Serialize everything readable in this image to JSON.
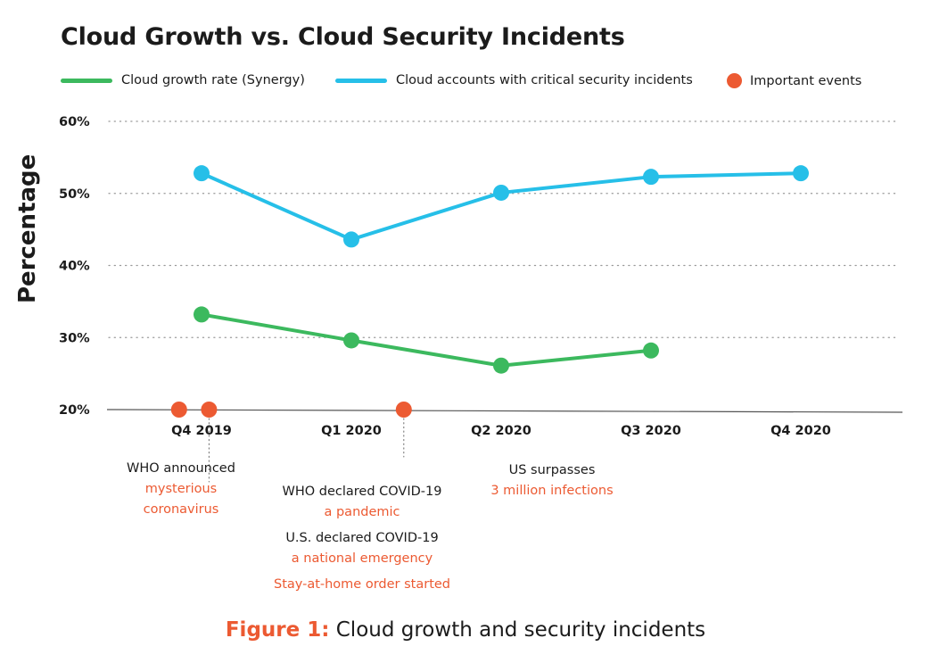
{
  "title": "Cloud Growth vs. Cloud Security Incidents",
  "caption": {
    "label": "Figure 1:",
    "text": "Cloud growth and security incidents"
  },
  "colors": {
    "green": "#3cb95e",
    "blue": "#26bfe8",
    "orange": "#ec5a32",
    "text": "#1b1b1b",
    "grid": "#999999"
  },
  "chart_data": {
    "type": "line",
    "ylabel": "Percentage",
    "xlabel": "",
    "ylim": [
      20,
      60
    ],
    "yticks": [
      "20%",
      "30%",
      "40%",
      "50%",
      "60%"
    ],
    "ytick_values": [
      20,
      30,
      40,
      50,
      60
    ],
    "grid": true,
    "legend_position": "top",
    "categories": [
      "Q4 2019",
      "Q1 2020",
      "Q2 2020",
      "Q3 2020",
      "Q4 2020"
    ],
    "series": [
      {
        "name": "Cloud growth rate (Synergy)",
        "color": "#3cb95e",
        "values": [
          33.2,
          29.6,
          26.1,
          28.2,
          null
        ]
      },
      {
        "name": "Cloud accounts with critical security incidents",
        "color": "#26bfe8",
        "values": [
          52.8,
          43.6,
          50.1,
          52.3,
          52.8
        ]
      }
    ],
    "events_series": {
      "name": "Important events",
      "color": "#ec5a32",
      "x": [
        -0.15,
        0.05,
        1.35
      ],
      "y": [
        20,
        20,
        20
      ]
    },
    "annotations": [
      {
        "lines": [
          {
            "text": "WHO announced",
            "accent": false
          },
          {
            "text": "mysterious",
            "accent": true
          },
          {
            "text": "coronavirus",
            "accent": true
          }
        ]
      },
      {
        "lines": [
          {
            "text": "WHO declared COVID-19",
            "accent": false
          },
          {
            "text": "a pandemic",
            "accent": true
          },
          {
            "text": "U.S. declared COVID-19",
            "accent": false
          },
          {
            "text": "a national emergency",
            "accent": true
          },
          {
            "text": "Stay-at-home order started",
            "accent": true
          }
        ]
      },
      {
        "lines": [
          {
            "text": "US surpasses",
            "accent": false
          },
          {
            "text": "3 million infections",
            "accent": true
          }
        ]
      }
    ]
  }
}
